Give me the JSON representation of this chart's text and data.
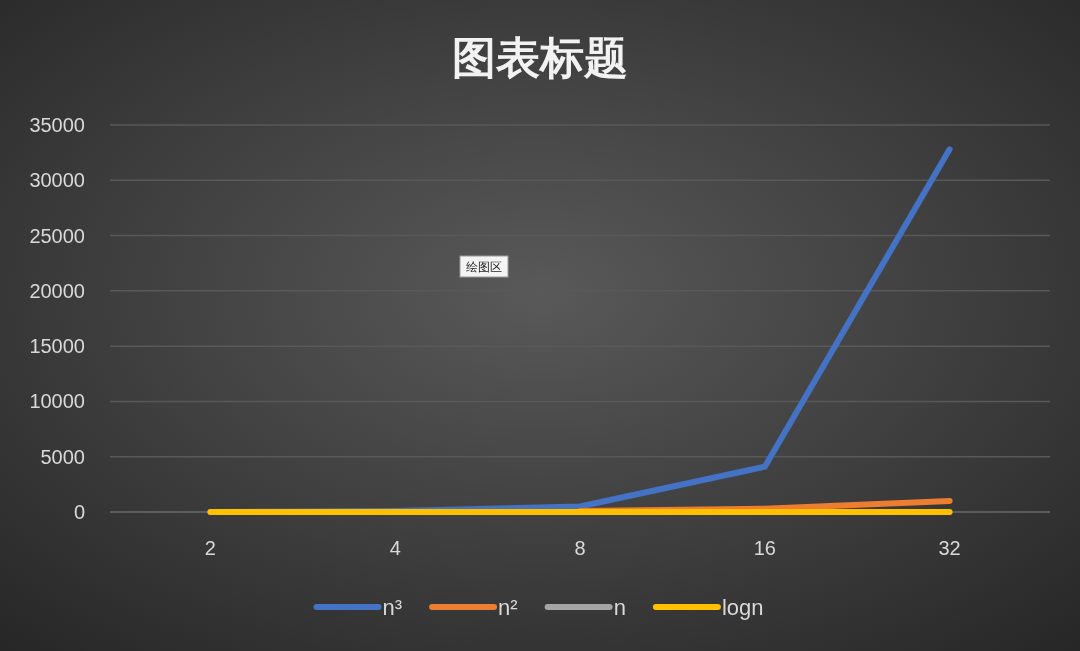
{
  "chart_data": {
    "type": "line",
    "title": "图表标题",
    "annotations": [
      "绘图区"
    ],
    "categories": [
      "2",
      "4",
      "8",
      "16",
      "32"
    ],
    "series": [
      {
        "name": "n³",
        "color": "#4472c4",
        "values": [
          0,
          100,
          500,
          4100,
          32800
        ]
      },
      {
        "name": "n²",
        "color": "#ed7d31",
        "values": [
          null,
          null,
          100,
          300,
          1000
        ]
      },
      {
        "name": "n",
        "color": "#a5a5a5",
        "values": [
          null,
          null,
          null,
          null,
          null
        ]
      },
      {
        "name": "logn",
        "color": "#ffc000",
        "values": [
          0,
          0,
          0,
          0,
          0
        ]
      }
    ],
    "ylim": [
      0,
      35000
    ],
    "yticks": [
      0,
      5000,
      10000,
      15000,
      20000,
      25000,
      30000,
      35000
    ],
    "grid": "y",
    "legend": "bottom"
  }
}
